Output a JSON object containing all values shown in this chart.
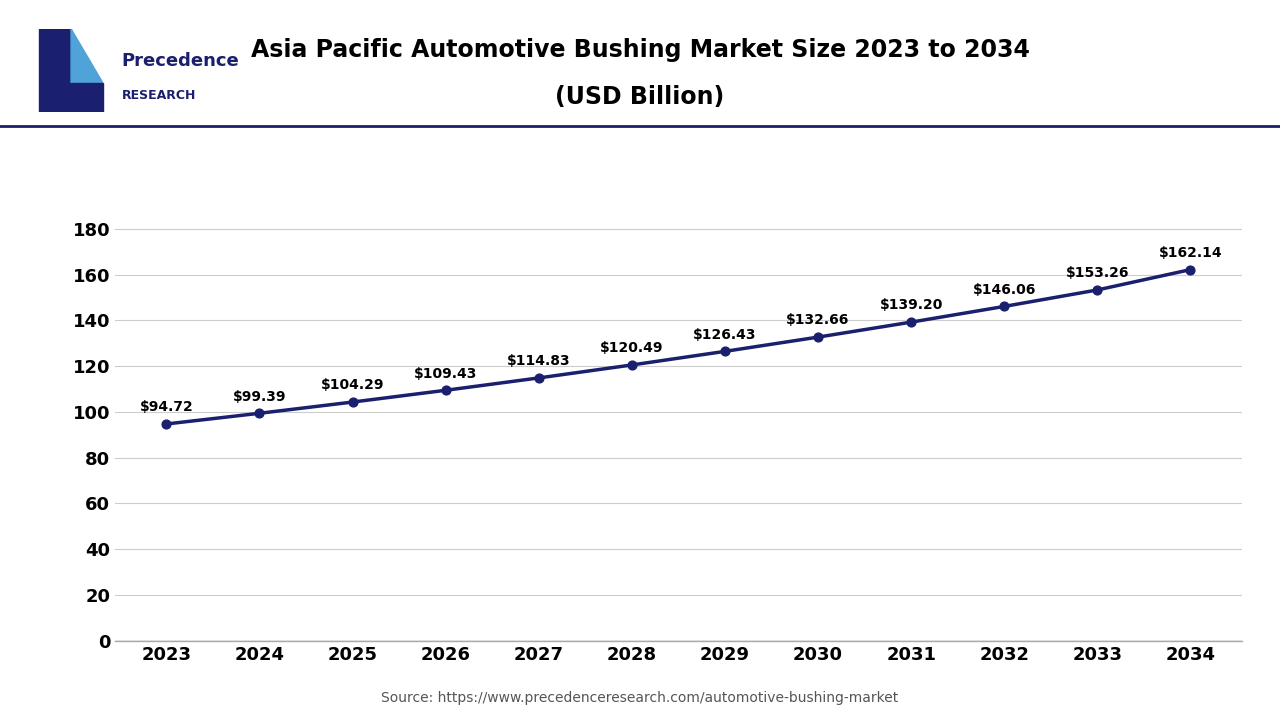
{
  "title_line1": "Asia Pacific Automotive Bushing Market Size 2023 to 2034",
  "title_line2": "(USD Billion)",
  "years": [
    2023,
    2024,
    2025,
    2026,
    2027,
    2028,
    2029,
    2030,
    2031,
    2032,
    2033,
    2034
  ],
  "values": [
    94.72,
    99.39,
    104.29,
    109.43,
    114.83,
    120.49,
    126.43,
    132.66,
    139.2,
    146.06,
    153.26,
    162.14
  ],
  "labels": [
    "$94.72",
    "$99.39",
    "$104.29",
    "$109.43",
    "$114.83",
    "$120.49",
    "$126.43",
    "$132.66",
    "$139.20",
    "$146.06",
    "$153.26",
    "$162.14"
  ],
  "line_color": "#1a1f6e",
  "marker_color": "#1a1f6e",
  "bg_color": "#ffffff",
  "plot_bg_color": "#ffffff",
  "yticks": [
    0,
    20,
    40,
    60,
    80,
    100,
    120,
    140,
    160,
    180
  ],
  "ylim": [
    0,
    195
  ],
  "grid_color": "#cccccc",
  "title_color": "#000000",
  "tick_label_color": "#000000",
  "source_text": "Source: https://www.precedenceresearch.com/automotive-bushing-market",
  "logo_text_line1": "Precedence",
  "logo_text_line2": "RESEARCH",
  "separator_color": "#1a1f6e",
  "logo_dark_color": "#1a1f6e",
  "logo_light_color": "#4fa3d9"
}
